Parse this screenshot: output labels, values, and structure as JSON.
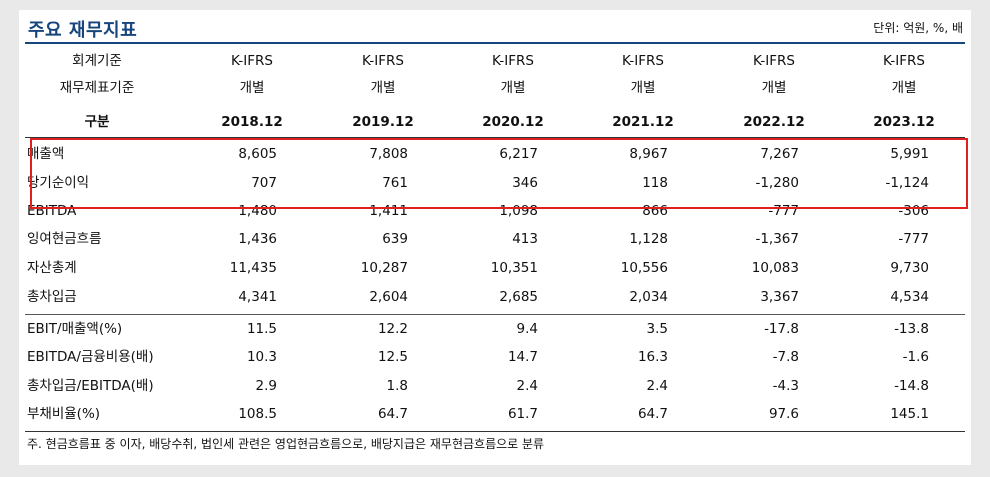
{
  "title": "주요 재무지표",
  "unit": "단위: 억원, %, 배",
  "header": {
    "accounting_label": "회계기준",
    "accounting": [
      "K-IFRS",
      "K-IFRS",
      "K-IFRS",
      "K-IFRS",
      "K-IFRS",
      "K-IFRS"
    ],
    "statement_label": "재무제표기준",
    "statement": [
      "개별",
      "개별",
      "개별",
      "개별",
      "개별",
      "개별"
    ],
    "period_label": "구분",
    "periods": [
      "2018.12",
      "2019.12",
      "2020.12",
      "2021.12",
      "2022.12",
      "2023.12"
    ]
  },
  "rows": [
    {
      "label": "매출액",
      "values": [
        "8,605",
        "7,808",
        "6,217",
        "8,967",
        "7,267",
        "5,991"
      ]
    },
    {
      "label": "당기순이익",
      "values": [
        "707",
        "761",
        "346",
        "118",
        "-1,280",
        "-1,124"
      ]
    },
    {
      "label": "EBITDA",
      "values": [
        "1,480",
        "1,411",
        "1,098",
        "866",
        "-777",
        "-306"
      ]
    },
    {
      "label": "잉여현금흐름",
      "values": [
        "1,436",
        "639",
        "413",
        "1,128",
        "-1,367",
        "-777"
      ]
    },
    {
      "label": "자산총계",
      "values": [
        "11,435",
        "10,287",
        "10,351",
        "10,556",
        "10,083",
        "9,730"
      ]
    },
    {
      "label": "총차입금",
      "values": [
        "4,341",
        "2,604",
        "2,685",
        "2,034",
        "3,367",
        "4,534"
      ]
    },
    {
      "label": "EBIT/매출액(%)",
      "values": [
        "11.5",
        "12.2",
        "9.4",
        "3.5",
        "-17.8",
        "-13.8"
      ]
    },
    {
      "label": "EBITDA/금융비용(배)",
      "values": [
        "10.3",
        "12.5",
        "14.7",
        "16.3",
        "-7.8",
        "-1.6"
      ]
    },
    {
      "label": "총차입금/EBITDA(배)",
      "values": [
        "2.9",
        "1.8",
        "2.4",
        "2.4",
        "-4.3",
        "-14.8"
      ]
    },
    {
      "label": "부채비율(%)",
      "values": [
        "108.5",
        "64.7",
        "61.7",
        "64.7",
        "97.6",
        "145.1"
      ]
    }
  ],
  "note": "주. 현금흐름표 중 이자, 배당수취, 법인세 관련은 영업현금흐름으로, 배당지급은 재무현금흐름으로 분류",
  "colors": {
    "title": "#16457e",
    "highlight": "#e02020"
  }
}
